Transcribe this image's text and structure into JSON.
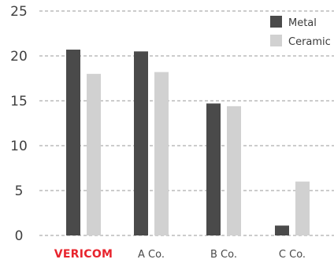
{
  "chart_data": {
    "type": "bar",
    "categories": [
      "VERICOM",
      "A Co.",
      "B Co.",
      "C Co."
    ],
    "series": [
      {
        "name": "Metal",
        "values": [
          20.7,
          20.5,
          14.7,
          1.1
        ],
        "color": "#4a4a4a"
      },
      {
        "name": "Ceramic",
        "values": [
          18.0,
          18.2,
          14.4,
          6.0
        ],
        "color": "#d1d1d1"
      }
    ],
    "yticks": [
      "0",
      "5",
      "10",
      "15",
      "20",
      "25"
    ],
    "ylim": [
      0,
      25
    ],
    "grid": "dashed horizontal",
    "legend": "top-right",
    "brand_category_color": "#e8242d"
  }
}
